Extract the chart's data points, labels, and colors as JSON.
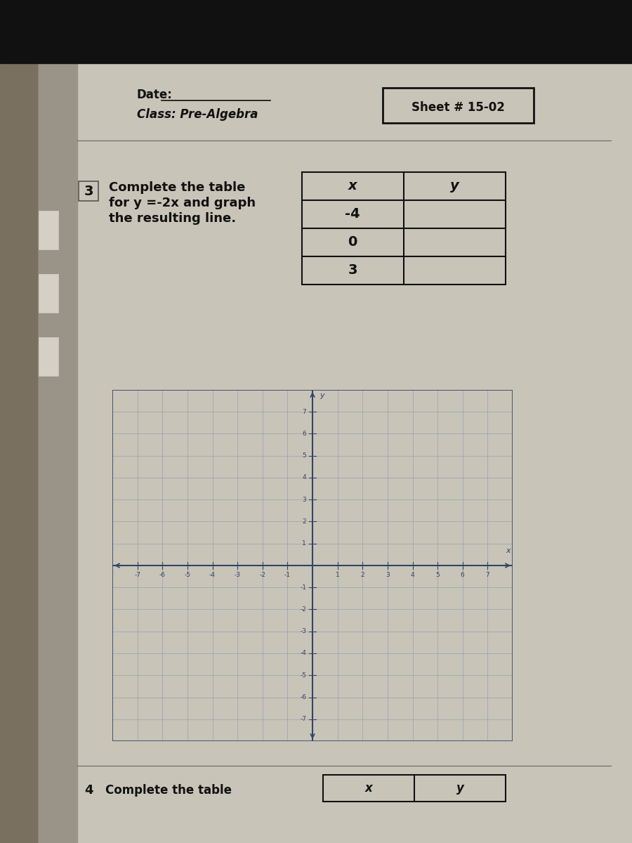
{
  "bg_outer": "#7a7060",
  "bg_paper": "#c8c4b8",
  "bg_sidebar": "#9a9488",
  "bg_top_bar": "#111111",
  "tab_color": "#c0bdb0",
  "text_color": "#111111",
  "header_date_label": "Date:",
  "header_class_label": "Class: Pre-Algebra",
  "sheet_box_label": "Sheet # 15-02",
  "problem_number": "3",
  "problem_text_line1": "Complete the table",
  "problem_text_line2": "for y =-2x and graph",
  "problem_text_line3": "the resulting line.",
  "table_x_header": "x",
  "table_y_header": "y",
  "table_x_values": [
    "-4",
    "0",
    "3"
  ],
  "bottom_problem_number": "4",
  "bottom_problem_text": "Complete the table",
  "bottom_table_x_header": "x",
  "bottom_table_y_header": "y",
  "grid_range": 8,
  "grid_line_color": "#8899aa",
  "axis_line_color": "#334466",
  "graph_bg": "#c8c4b8"
}
